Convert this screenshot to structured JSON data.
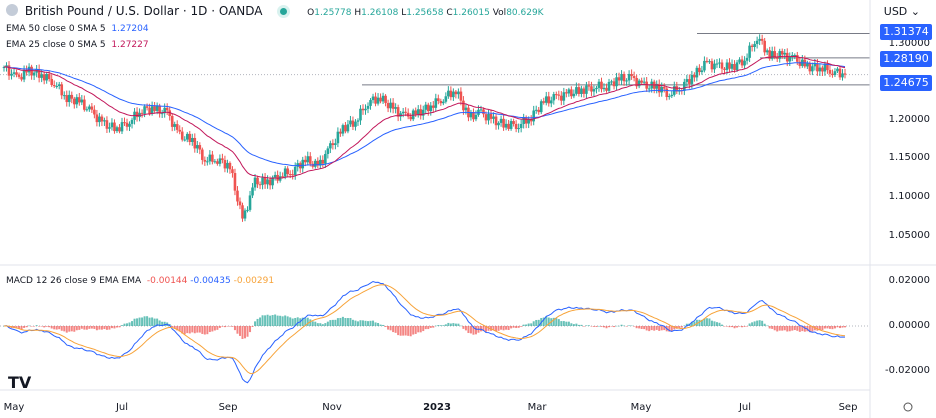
{
  "header": {
    "symbol_icon": "gbp-usd-flags-icon",
    "title": "British Pound / U.S. Dollar · 1D · OANDA",
    "status_color": "#26a69a",
    "ohlc": {
      "o_label": "O",
      "o": "1.25778",
      "h_label": "H",
      "h": "1.26108",
      "l_label": "L",
      "l": "1.25658",
      "c_label": "C",
      "c": "1.26015",
      "vol_label": "Vol",
      "vol": "80.629K"
    }
  },
  "indicators": [
    {
      "label": "EMA 50 close 0 SMA 5",
      "value": "1.27204",
      "color": "#2962ff"
    },
    {
      "label": "EMA 25 close 0 SMA 5",
      "value": "1.27227",
      "color": "#c2185b"
    },
    {
      "label": "MACD 12 26 close 9 EMA EMA",
      "values": [
        "-0.00144",
        "-0.00435",
        "-0.00291"
      ],
      "colors": [
        "#ef5350",
        "#2962ff",
        "#f7a339"
      ]
    }
  ],
  "currency": "USD",
  "price_axis": {
    "ticks": [
      "1.30000",
      "1.20000",
      "1.15000",
      "1.10000",
      "1.05000"
    ],
    "badges": [
      "1.31374",
      "1.28190",
      "1.24675"
    ]
  },
  "macd_axis": {
    "ticks": [
      "0.02000",
      "0.00000",
      "-0.02000"
    ]
  },
  "time_axis": [
    "May",
    "Jul",
    "Sep",
    "Nov",
    "2023",
    "Mar",
    "May",
    "Jul",
    "Sep"
  ],
  "logo": "TV",
  "settings_icon": "gear-icon",
  "chart_data": {
    "type": "candlestick",
    "timeframe": "1D",
    "colors": {
      "up": "#26a69a",
      "down": "#ef5350",
      "ema25": "#c2185b",
      "ema50": "#2962ff",
      "macd": "#2962ff",
      "signal": "#f7a339"
    },
    "horizontal_levels": [
      1.31374,
      1.2819,
      1.24675
    ],
    "last_price": 1.26015,
    "ylim": [
      1.03,
      1.325
    ],
    "macd_ylim": [
      -0.027,
      0.022
    ],
    "approx_weekly_closes": [
      1.27,
      1.255,
      1.265,
      1.26,
      1.25,
      1.23,
      1.225,
      1.21,
      1.195,
      1.19,
      1.2,
      1.215,
      1.215,
      1.21,
      1.18,
      1.175,
      1.15,
      1.15,
      1.14,
      1.07,
      1.12,
      1.12,
      1.13,
      1.135,
      1.15,
      1.14,
      1.165,
      1.19,
      1.2,
      1.225,
      1.23,
      1.215,
      1.205,
      1.21,
      1.22,
      1.23,
      1.24,
      1.205,
      1.21,
      1.2,
      1.195,
      1.195,
      1.205,
      1.225,
      1.23,
      1.235,
      1.24,
      1.245,
      1.245,
      1.255,
      1.255,
      1.245,
      1.245,
      1.235,
      1.245,
      1.26,
      1.275,
      1.27,
      1.27,
      1.28,
      1.31,
      1.285,
      1.285,
      1.28,
      1.27,
      1.27,
      1.265,
      1.26
    ]
  }
}
